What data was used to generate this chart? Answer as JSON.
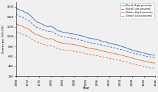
{
  "title": "",
  "xlabel": "Year",
  "ylabel": "Deaths per 100,000",
  "ylim": [
    200,
    1700
  ],
  "xlim": [
    1968,
    2016
  ],
  "years": [
    1968,
    1969,
    1970,
    1971,
    1972,
    1973,
    1974,
    1975,
    1976,
    1977,
    1978,
    1979,
    1980,
    1981,
    1982,
    1983,
    1984,
    1985,
    1986,
    1987,
    1988,
    1989,
    1990,
    1991,
    1992,
    1993,
    1994,
    1995,
    1996,
    1997,
    1998,
    1999,
    2000,
    2001,
    2002,
    2003,
    2004,
    2005,
    2006,
    2007,
    2008,
    2009,
    2010,
    2011,
    2012,
    2013,
    2014,
    2015,
    2016
  ],
  "rural_high_poverty": [
    1580,
    1540,
    1530,
    1490,
    1470,
    1420,
    1360,
    1300,
    1280,
    1250,
    1220,
    1200,
    1210,
    1180,
    1130,
    1110,
    1090,
    1080,
    1070,
    1060,
    1050,
    1040,
    1020,
    1010,
    990,
    970,
    960,
    950,
    940,
    920,
    900,
    890,
    870,
    860,
    840,
    830,
    810,
    790,
    770,
    750,
    730,
    710,
    700,
    680,
    670,
    650,
    640,
    630,
    620
  ],
  "rural_low_poverty": [
    1450,
    1420,
    1400,
    1360,
    1340,
    1290,
    1240,
    1190,
    1170,
    1150,
    1120,
    1100,
    1110,
    1080,
    1040,
    1020,
    1000,
    990,
    980,
    970,
    960,
    950,
    930,
    920,
    900,
    880,
    870,
    860,
    850,
    835,
    820,
    810,
    795,
    785,
    770,
    755,
    740,
    725,
    710,
    690,
    675,
    655,
    645,
    628,
    615,
    600,
    590,
    580,
    570
  ],
  "urban_high_poverty": [
    1260,
    1230,
    1215,
    1180,
    1165,
    1120,
    1075,
    1040,
    1020,
    995,
    970,
    950,
    960,
    935,
    900,
    880,
    870,
    860,
    855,
    845,
    835,
    825,
    810,
    800,
    782,
    768,
    758,
    748,
    738,
    722,
    708,
    694,
    680,
    670,
    656,
    642,
    628,
    614,
    600,
    582,
    567,
    548,
    537,
    520,
    506,
    492,
    482,
    472,
    462
  ],
  "urban_low_poverty": [
    1100,
    1075,
    1060,
    1025,
    1010,
    968,
    928,
    892,
    875,
    853,
    830,
    812,
    820,
    797,
    765,
    746,
    737,
    728,
    720,
    712,
    703,
    694,
    680,
    671,
    655,
    642,
    633,
    623,
    614,
    599,
    587,
    575,
    562,
    552,
    540,
    528,
    514,
    500,
    487,
    469,
    455,
    437,
    426,
    411,
    397,
    384,
    374,
    365,
    355
  ],
  "colors": {
    "rural_high_poverty": "#4472c4",
    "rural_low_poverty": "#4472c4",
    "urban_high_poverty": "#e07a3c",
    "urban_low_poverty": "#e07a3c"
  },
  "legend_labels": [
    "Rural High-poverty",
    "Rural Low-poverty",
    "Urban High-poverty",
    "Urban Low-poverty"
  ],
  "yticks": [
    200,
    400,
    600,
    800,
    1000,
    1200,
    1400,
    1600
  ],
  "xticks": [
    1968,
    1972,
    1976,
    1980,
    1984,
    1988,
    1992,
    1996,
    2000,
    2004,
    2008,
    2012,
    2016
  ],
  "background_color": "#f5f5f5"
}
